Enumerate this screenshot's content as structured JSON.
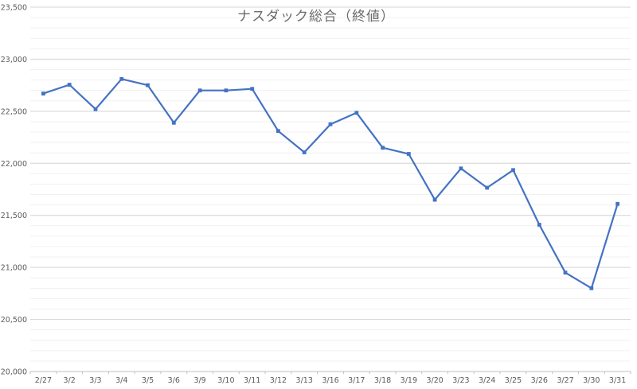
{
  "page": {
    "background": "#ffffff"
  },
  "chart_data": {
    "type": "line",
    "title": "ナスダック総合（終値）",
    "categories": [
      "2/27",
      "3/2",
      "3/3",
      "3/4",
      "3/5",
      "3/6",
      "3/9",
      "3/10",
      "3/11",
      "3/12",
      "3/13",
      "3/16",
      "3/17",
      "3/18",
      "3/19",
      "3/20",
      "3/23",
      "3/24",
      "3/25",
      "3/26",
      "3/27",
      "3/30",
      "3/31"
    ],
    "values": [
      22670,
      22755,
      22520,
      22810,
      22750,
      22390,
      22700,
      22700,
      22715,
      22310,
      22105,
      22375,
      22485,
      22150,
      22090,
      21650,
      21950,
      21765,
      21935,
      21410,
      20950,
      20800,
      21610
    ],
    "xlabel": "",
    "ylabel": "",
    "ylim": [
      20000,
      23500
    ],
    "y_major_step": 500,
    "y_minor_step": 100,
    "y_tick_labels": [
      "20,000",
      "20,500",
      "21,000",
      "21,500",
      "22,000",
      "22,500",
      "23,000",
      "23,500"
    ],
    "grid": "horizontal major+minor",
    "legend": false,
    "marker": "square",
    "colors": {
      "line": "#4472C4",
      "major_gridline": "#d4d4d4",
      "minor_gridline": "#f0f0f0",
      "axis_line": "#bfbfbf",
      "tick": "#bfbfbf",
      "axis_text": "#595959",
      "title_text": "#6b6b6b"
    }
  }
}
